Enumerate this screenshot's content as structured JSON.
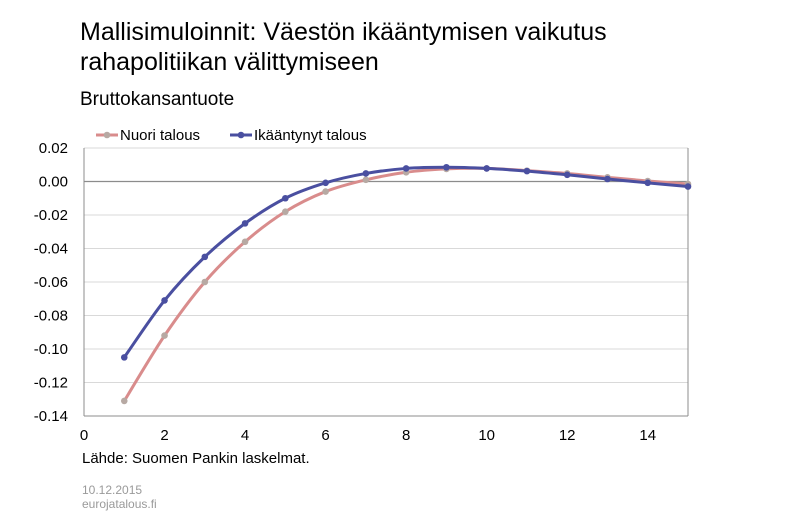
{
  "title": "Mallisimuloinnit: Väestön ikääntymisen vaikutus rahapolitiikan välittymiseen",
  "subtitle": "Bruttokansantuote",
  "source": "Lähde: Suomen Pankin laskelmat.",
  "footer": {
    "date": "10.12.2015",
    "site": "eurojatalous.fi"
  },
  "colors": {
    "young": "#d98c8c",
    "young_marker": "#b7a9a3",
    "aged": "#4a4fa0",
    "grid": "#d9d9d9"
  },
  "chart_data": {
    "type": "line",
    "title": "Mallisimuloinnit: Väestön ikääntymisen vaikutus rahapolitiikan välittymiseen",
    "subtitle": "Bruttokansantuote",
    "xlim": [
      0,
      15
    ],
    "ylim": [
      -0.14,
      0.02
    ],
    "xticks": [
      "0",
      "2",
      "4",
      "6",
      "8",
      "10",
      "12",
      "14"
    ],
    "yticks": [
      "0.02",
      "0.00",
      "-0.02",
      "-0.04",
      "-0.06",
      "-0.08",
      "-0.10",
      "-0.12",
      "-0.14"
    ],
    "legend_position": "top",
    "grid": true,
    "x": [
      1,
      2,
      3,
      4,
      5,
      6,
      7,
      8,
      9,
      10,
      11,
      12,
      13,
      14,
      15
    ],
    "series": [
      {
        "name": "Nuori talous",
        "values": [
          -0.131,
          -0.092,
          -0.06,
          -0.036,
          -0.018,
          -0.006,
          0.001,
          0.0055,
          0.0075,
          0.0078,
          0.0065,
          0.0048,
          0.0025,
          0.0003,
          -0.0015
        ]
      },
      {
        "name": "Ikääntynyt talous",
        "values": [
          -0.105,
          -0.071,
          -0.045,
          -0.025,
          -0.01,
          -0.0008,
          0.0048,
          0.0078,
          0.0085,
          0.0078,
          0.0062,
          0.004,
          0.0015,
          -0.0008,
          -0.003
        ]
      }
    ]
  }
}
